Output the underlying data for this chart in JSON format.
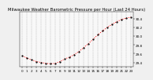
{
  "title": "Milwaukee Weather Barometric Pressure per Hour (Last 24 Hours)",
  "hours": [
    0,
    1,
    2,
    3,
    4,
    5,
    6,
    7,
    8,
    9,
    10,
    11,
    12,
    13,
    14,
    15,
    16,
    17,
    18,
    19,
    20,
    21,
    22,
    23
  ],
  "pressure": [
    29.55,
    29.5,
    29.46,
    29.42,
    29.4,
    29.38,
    29.37,
    29.38,
    29.42,
    29.48,
    29.52,
    29.58,
    29.65,
    29.74,
    29.83,
    29.93,
    30.03,
    30.12,
    30.2,
    30.27,
    30.33,
    30.38,
    30.41,
    30.43
  ],
  "ylim": [
    29.3,
    30.55
  ],
  "ytick_values": [
    29.4,
    29.6,
    29.8,
    30.0,
    30.2,
    30.4
  ],
  "ytick_labels": [
    "29.4",
    "29.6",
    "29.8",
    "30.0",
    "30.2",
    "30.4"
  ],
  "bg_color": "#f0f0f0",
  "plot_bg_color": "#f8f8f8",
  "line_color": "#ff0000",
  "marker_color": "#000000",
  "grid_color": "#aaaaaa",
  "title_fontsize": 3.8,
  "tick_fontsize": 3.0
}
